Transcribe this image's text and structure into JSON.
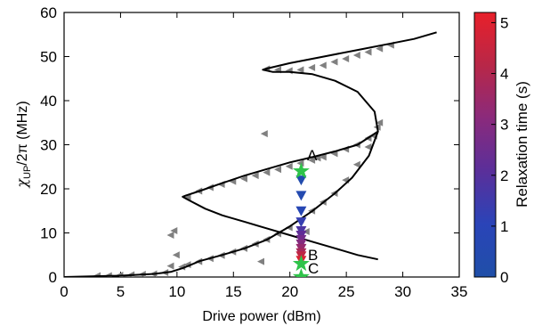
{
  "chart_data": {
    "type": "scatter",
    "xlabel": "Drive power (dBm)",
    "ylabel": {
      "main": "χ",
      "sub": "UP",
      "rest": "/2π (MHz)"
    },
    "xlim": [
      0,
      35
    ],
    "ylim": [
      0,
      60
    ],
    "xticks": [
      0,
      5,
      10,
      15,
      20,
      25,
      30,
      35
    ],
    "yticks": [
      0,
      10,
      20,
      30,
      40,
      50,
      60
    ],
    "colorbar": {
      "label": "Relaxation time (s)",
      "range": [
        0,
        5.2
      ],
      "ticks": [
        0,
        1,
        2,
        3,
        4,
        5
      ],
      "colors": [
        "#1f4fa8",
        "#2a44b8",
        "#5a2f9a",
        "#8a2a7c",
        "#b82748",
        "#e8202a"
      ]
    },
    "colors": {
      "data_markers": "#808080",
      "fit_line": "#000000",
      "star": "#2fc34a"
    },
    "series": [
      {
        "kind": "fit_curve",
        "x": [
          0.0,
          5.0,
          8.0,
          9.5,
          10.5,
          11.0,
          12.0,
          14.0,
          16.0,
          18.0,
          20.0,
          22.0,
          24.0,
          25.5,
          27.0,
          27.8,
          27.5,
          26.0,
          24.0,
          22.0,
          20.0,
          18.5,
          17.6,
          18.0,
          20.0,
          23.0,
          26.0,
          29.0,
          31.0,
          33.0
        ],
        "y": [
          0.0,
          0.3,
          0.7,
          1.2,
          2.0,
          2.5,
          3.6,
          5.0,
          6.5,
          8.5,
          11.5,
          15.0,
          19.0,
          22.5,
          27.5,
          33.0,
          37.5,
          42.0,
          44.5,
          46.0,
          46.5,
          46.5,
          47.0,
          47.3,
          48.5,
          50.0,
          51.5,
          53.0,
          54.0,
          55.5
        ]
      },
      {
        "kind": "fit_curve_upper_branch",
        "x": [
          27.8,
          26.0,
          24.0,
          22.0,
          20.0,
          18.0,
          16.0,
          14.0,
          12.0,
          10.8,
          10.5,
          11.0,
          12.5,
          14.0,
          16.0,
          18.0,
          20.0,
          22.0,
          24.0,
          26.0,
          27.8
        ],
        "y": [
          33.0,
          30.0,
          28.5,
          27.2,
          26.0,
          24.5,
          23.0,
          21.3,
          19.5,
          18.5,
          18.2,
          17.5,
          15.5,
          14.0,
          12.5,
          11.0,
          9.5,
          8.0,
          6.5,
          5.0,
          4.0
        ]
      },
      {
        "kind": "data_markers",
        "x": [
          3,
          4,
          5,
          6,
          7,
          8,
          9,
          9.5,
          10,
          10.5,
          11,
          12,
          13,
          14,
          15,
          16,
          17,
          18,
          19,
          20,
          21,
          22,
          23,
          24,
          25,
          26,
          27,
          27.5,
          28,
          11,
          12,
          13,
          14,
          15,
          16,
          17,
          18,
          19,
          20,
          21,
          22,
          23,
          24,
          25,
          26,
          27,
          27.8,
          18,
          19,
          20,
          21,
          22,
          23,
          24,
          25,
          26,
          27,
          28,
          29,
          17.8,
          9.5,
          9.8,
          17.5,
          21.5,
          22.5
        ],
        "y": [
          0.3,
          0.3,
          0.4,
          0.5,
          0.6,
          0.7,
          1.0,
          2.5,
          5,
          2.3,
          2.8,
          3.5,
          4.2,
          4.9,
          5.7,
          6.5,
          7.5,
          8.5,
          9.8,
          11.2,
          13.0,
          15.0,
          17.0,
          19.0,
          22.0,
          25.5,
          29.5,
          32.0,
          35.0,
          18.0,
          19.5,
          20.3,
          21.0,
          21.7,
          22.3,
          23.0,
          23.7,
          24.4,
          25.1,
          25.8,
          26.5,
          27.2,
          28.0,
          29.0,
          30.0,
          31.5,
          34.0,
          47.2,
          47.0,
          46.8,
          47.0,
          47.5,
          48.0,
          48.8,
          49.5,
          50.3,
          51.0,
          51.8,
          52.6,
          32.5,
          9.5,
          10.5,
          3.5,
          10.3,
          27.0
        ]
      },
      {
        "kind": "relaxation_markers",
        "x": [
          21,
          21,
          21,
          21,
          21,
          21,
          21,
          21,
          21,
          21,
          21,
          21
        ],
        "y": [
          22,
          18.5,
          15,
          12.5,
          10.5,
          9.5,
          8.5,
          7.5,
          6.5,
          5.5,
          4.8,
          3.8
        ],
        "relaxation_time": [
          0.3,
          0.5,
          0.8,
          1.3,
          1.8,
          2.2,
          2.6,
          3.0,
          3.4,
          3.8,
          4.3,
          4.9
        ]
      },
      {
        "kind": "stars",
        "labels": [
          "A",
          "B",
          "C"
        ],
        "x": [
          21,
          21,
          21
        ],
        "y": [
          24,
          3,
          0
        ]
      }
    ]
  }
}
